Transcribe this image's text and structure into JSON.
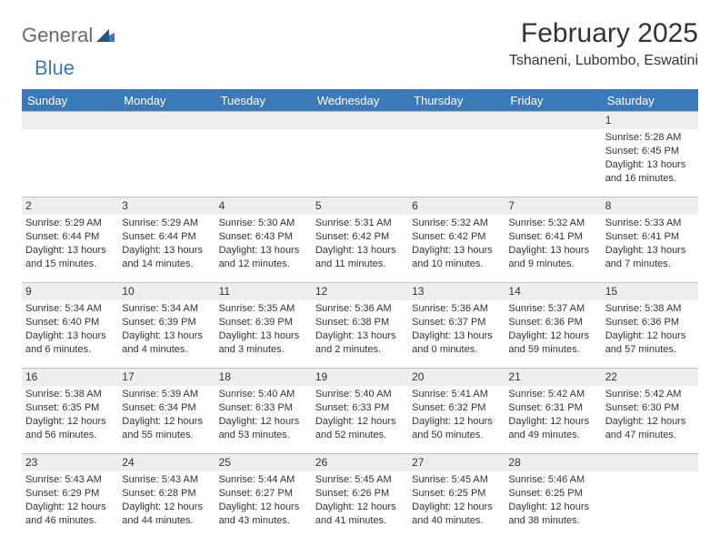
{
  "logo": {
    "text1": "General",
    "text2": "Blue"
  },
  "title": "February 2025",
  "location": "Tshaneni, Lubombo, Eswatini",
  "colors": {
    "header_bg": "#3a7ab8",
    "header_fg": "#ffffff",
    "daynum_bg": "#eeeeee",
    "border": "#bfbfbf",
    "text": "#333333",
    "logo_gray": "#6b6b6b",
    "logo_blue": "#3a7ab8"
  },
  "day_headers": [
    "Sunday",
    "Monday",
    "Tuesday",
    "Wednesday",
    "Thursday",
    "Friday",
    "Saturday"
  ],
  "weeks": [
    [
      null,
      null,
      null,
      null,
      null,
      null,
      {
        "n": "1",
        "sunrise": "5:28 AM",
        "sunset": "6:45 PM",
        "daylight": "13 hours and 16 minutes."
      }
    ],
    [
      {
        "n": "2",
        "sunrise": "5:29 AM",
        "sunset": "6:44 PM",
        "daylight": "13 hours and 15 minutes."
      },
      {
        "n": "3",
        "sunrise": "5:29 AM",
        "sunset": "6:44 PM",
        "daylight": "13 hours and 14 minutes."
      },
      {
        "n": "4",
        "sunrise": "5:30 AM",
        "sunset": "6:43 PM",
        "daylight": "13 hours and 12 minutes."
      },
      {
        "n": "5",
        "sunrise": "5:31 AM",
        "sunset": "6:42 PM",
        "daylight": "13 hours and 11 minutes."
      },
      {
        "n": "6",
        "sunrise": "5:32 AM",
        "sunset": "6:42 PM",
        "daylight": "13 hours and 10 minutes."
      },
      {
        "n": "7",
        "sunrise": "5:32 AM",
        "sunset": "6:41 PM",
        "daylight": "13 hours and 9 minutes."
      },
      {
        "n": "8",
        "sunrise": "5:33 AM",
        "sunset": "6:41 PM",
        "daylight": "13 hours and 7 minutes."
      }
    ],
    [
      {
        "n": "9",
        "sunrise": "5:34 AM",
        "sunset": "6:40 PM",
        "daylight": "13 hours and 6 minutes."
      },
      {
        "n": "10",
        "sunrise": "5:34 AM",
        "sunset": "6:39 PM",
        "daylight": "13 hours and 4 minutes."
      },
      {
        "n": "11",
        "sunrise": "5:35 AM",
        "sunset": "6:39 PM",
        "daylight": "13 hours and 3 minutes."
      },
      {
        "n": "12",
        "sunrise": "5:36 AM",
        "sunset": "6:38 PM",
        "daylight": "13 hours and 2 minutes."
      },
      {
        "n": "13",
        "sunrise": "5:36 AM",
        "sunset": "6:37 PM",
        "daylight": "13 hours and 0 minutes."
      },
      {
        "n": "14",
        "sunrise": "5:37 AM",
        "sunset": "6:36 PM",
        "daylight": "12 hours and 59 minutes."
      },
      {
        "n": "15",
        "sunrise": "5:38 AM",
        "sunset": "6:36 PM",
        "daylight": "12 hours and 57 minutes."
      }
    ],
    [
      {
        "n": "16",
        "sunrise": "5:38 AM",
        "sunset": "6:35 PM",
        "daylight": "12 hours and 56 minutes."
      },
      {
        "n": "17",
        "sunrise": "5:39 AM",
        "sunset": "6:34 PM",
        "daylight": "12 hours and 55 minutes."
      },
      {
        "n": "18",
        "sunrise": "5:40 AM",
        "sunset": "6:33 PM",
        "daylight": "12 hours and 53 minutes."
      },
      {
        "n": "19",
        "sunrise": "5:40 AM",
        "sunset": "6:33 PM",
        "daylight": "12 hours and 52 minutes."
      },
      {
        "n": "20",
        "sunrise": "5:41 AM",
        "sunset": "6:32 PM",
        "daylight": "12 hours and 50 minutes."
      },
      {
        "n": "21",
        "sunrise": "5:42 AM",
        "sunset": "6:31 PM",
        "daylight": "12 hours and 49 minutes."
      },
      {
        "n": "22",
        "sunrise": "5:42 AM",
        "sunset": "6:30 PM",
        "daylight": "12 hours and 47 minutes."
      }
    ],
    [
      {
        "n": "23",
        "sunrise": "5:43 AM",
        "sunset": "6:29 PM",
        "daylight": "12 hours and 46 minutes."
      },
      {
        "n": "24",
        "sunrise": "5:43 AM",
        "sunset": "6:28 PM",
        "daylight": "12 hours and 44 minutes."
      },
      {
        "n": "25",
        "sunrise": "5:44 AM",
        "sunset": "6:27 PM",
        "daylight": "12 hours and 43 minutes."
      },
      {
        "n": "26",
        "sunrise": "5:45 AM",
        "sunset": "6:26 PM",
        "daylight": "12 hours and 41 minutes."
      },
      {
        "n": "27",
        "sunrise": "5:45 AM",
        "sunset": "6:25 PM",
        "daylight": "12 hours and 40 minutes."
      },
      {
        "n": "28",
        "sunrise": "5:46 AM",
        "sunset": "6:25 PM",
        "daylight": "12 hours and 38 minutes."
      },
      null
    ]
  ],
  "labels": {
    "sunrise": "Sunrise: ",
    "sunset": "Sunset: ",
    "daylight": "Daylight: "
  }
}
